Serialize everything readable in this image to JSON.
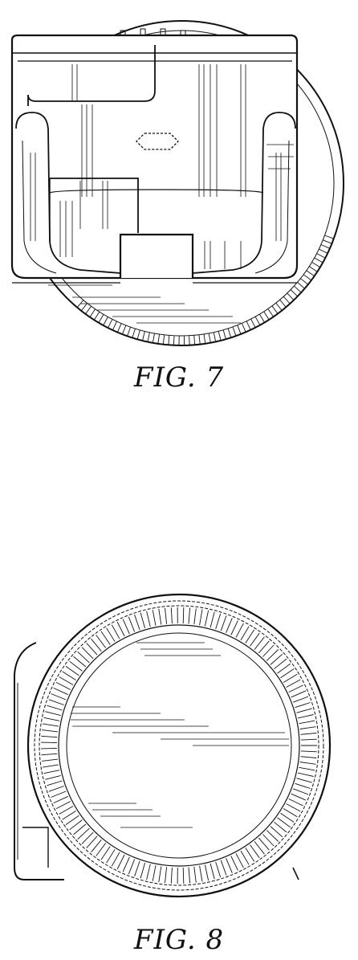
{
  "figures": [
    {
      "caption": "FIG. 7"
    },
    {
      "caption": "FIG. 8"
    }
  ],
  "colors": {
    "ink": "#111111",
    "paper": "#ffffff"
  }
}
